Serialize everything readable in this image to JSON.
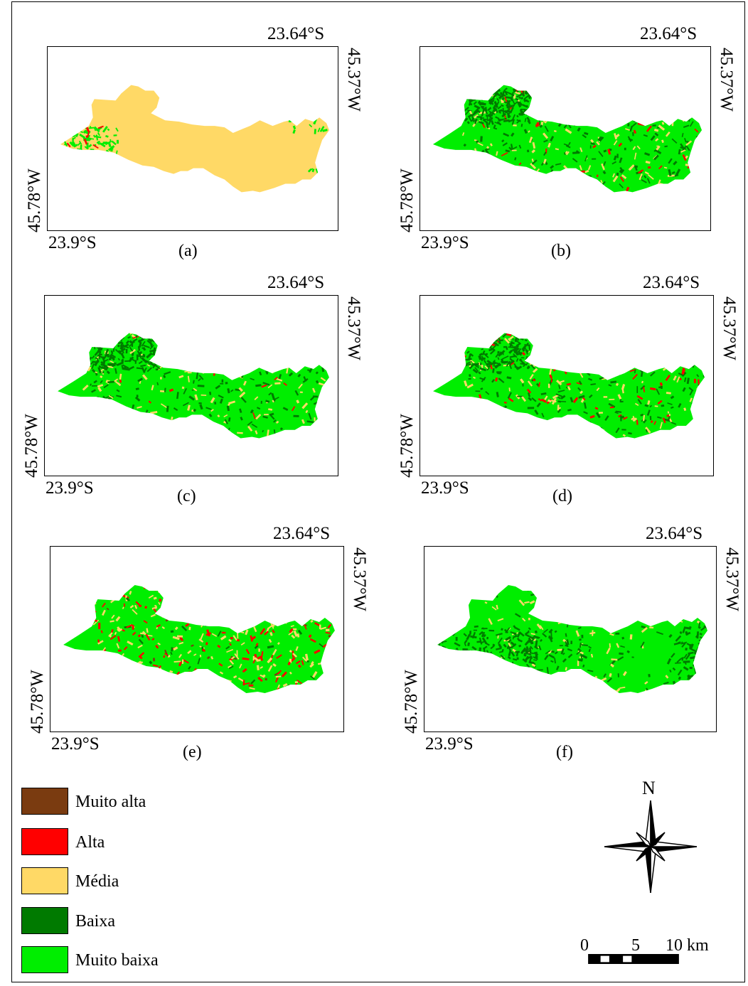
{
  "panels": [
    {
      "caption": "(a)",
      "lat_top": "23.64°S",
      "lat_bottom": "23.9°S",
      "lon_right": "45.37°W",
      "lon_left": "45.78°W",
      "scheme": "a"
    },
    {
      "caption": "(b)",
      "lat_top": "23.64°S",
      "lat_bottom": "23.9°S",
      "lon_right": "45.37°W",
      "lon_left": "45.78°W",
      "scheme": "b"
    },
    {
      "caption": "(c)",
      "lat_top": "23.64°S",
      "lat_bottom": "23.9°S",
      "lon_right": "45.37°W",
      "lon_left": "45.78°W",
      "scheme": "c"
    },
    {
      "caption": "(d)",
      "lat_top": "23.64°S",
      "lat_bottom": "23.9°S",
      "lon_right": "45.37°W",
      "lon_left": "45.78°W",
      "scheme": "d"
    },
    {
      "caption": "(e)",
      "lat_top": "23.64°S",
      "lat_bottom": "23.9°S",
      "lon_right": "45.37°W",
      "lon_left": "45.78°W",
      "scheme": "e"
    },
    {
      "caption": "(f)",
      "lat_top": "23.64°S",
      "lat_bottom": "23.9°S",
      "lon_right": "45.37°W",
      "lon_left": "45.78°W",
      "scheme": "f"
    }
  ],
  "legend": [
    {
      "label": "Muito alta",
      "color": "#7a3b10"
    },
    {
      "label": "Alta",
      "color": "#ff0000"
    },
    {
      "label": "Média",
      "color": "#ffd966"
    },
    {
      "label": "Baixa",
      "color": "#007a00"
    },
    {
      "label": "Muito  baixa",
      "color": "#00ee00"
    }
  ],
  "north_arrow": {
    "label": "N",
    "icon": "compass-rose-icon"
  },
  "scale_bar": {
    "tick_0": "0",
    "tick_5": "5",
    "tick_10": "10 km"
  }
}
